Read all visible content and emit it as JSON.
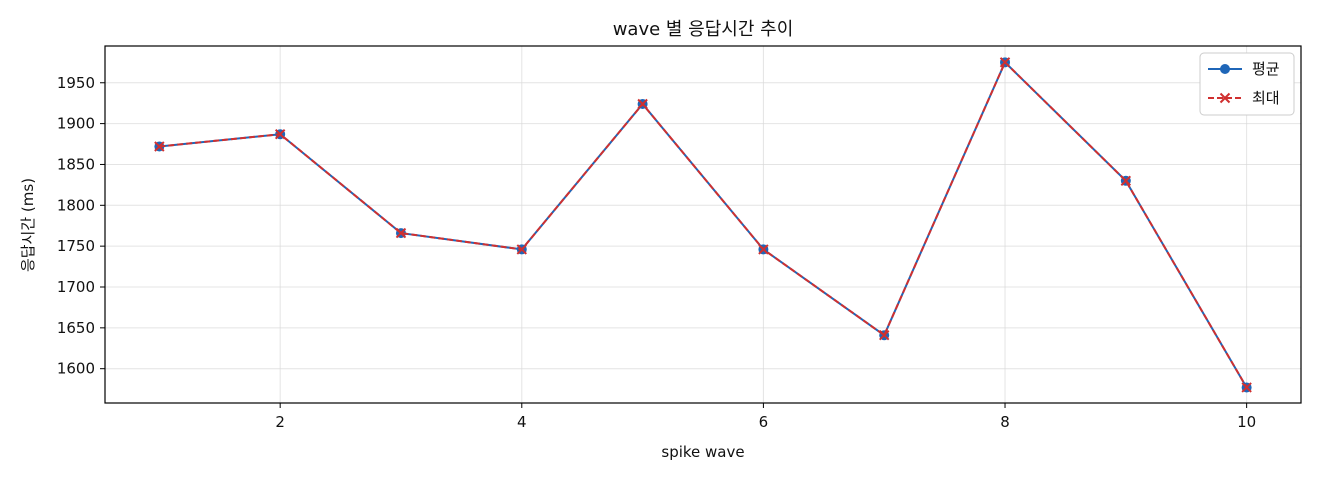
{
  "chart_data": {
    "type": "line",
    "title": "wave 별 응답시간 추이",
    "xlabel": "spike wave",
    "ylabel": "응답시간 (ms)",
    "x": [
      1,
      2,
      3,
      4,
      5,
      6,
      7,
      8,
      9,
      10
    ],
    "xlim": [
      0.55,
      10.45
    ],
    "ylim": [
      1558,
      1995
    ],
    "xticks": [
      2,
      4,
      6,
      8,
      10
    ],
    "yticks": [
      1600,
      1650,
      1700,
      1750,
      1800,
      1850,
      1900,
      1950
    ],
    "grid": true,
    "legend_position": "top-right",
    "series": [
      {
        "name": "평균",
        "color": "#1f66b8",
        "marker": "circle",
        "line_style": "solid",
        "values": [
          1872,
          1887,
          1766,
          1746,
          1924,
          1746,
          1641,
          1975,
          1830,
          1577
        ]
      },
      {
        "name": "최대",
        "color": "#d03030",
        "marker": "x",
        "line_style": "dashed",
        "values": [
          1872,
          1887,
          1766,
          1746,
          1924,
          1746,
          1641,
          1975,
          1830,
          1577
        ]
      }
    ]
  }
}
